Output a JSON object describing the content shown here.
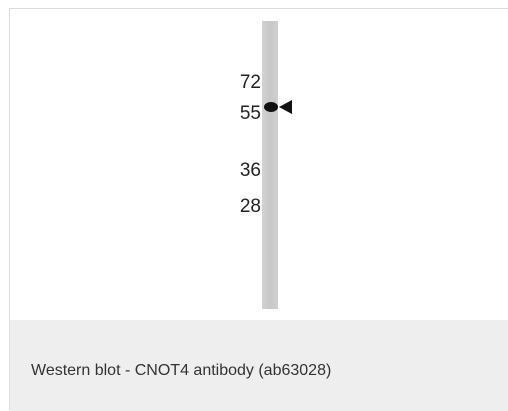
{
  "blot": {
    "marker_labels": [
      "72",
      "55",
      "36",
      "28"
    ],
    "band_marker": "arrowhead-left-icon"
  },
  "caption": {
    "text": "Western blot - CNOT4 antibody (ab63028)"
  }
}
